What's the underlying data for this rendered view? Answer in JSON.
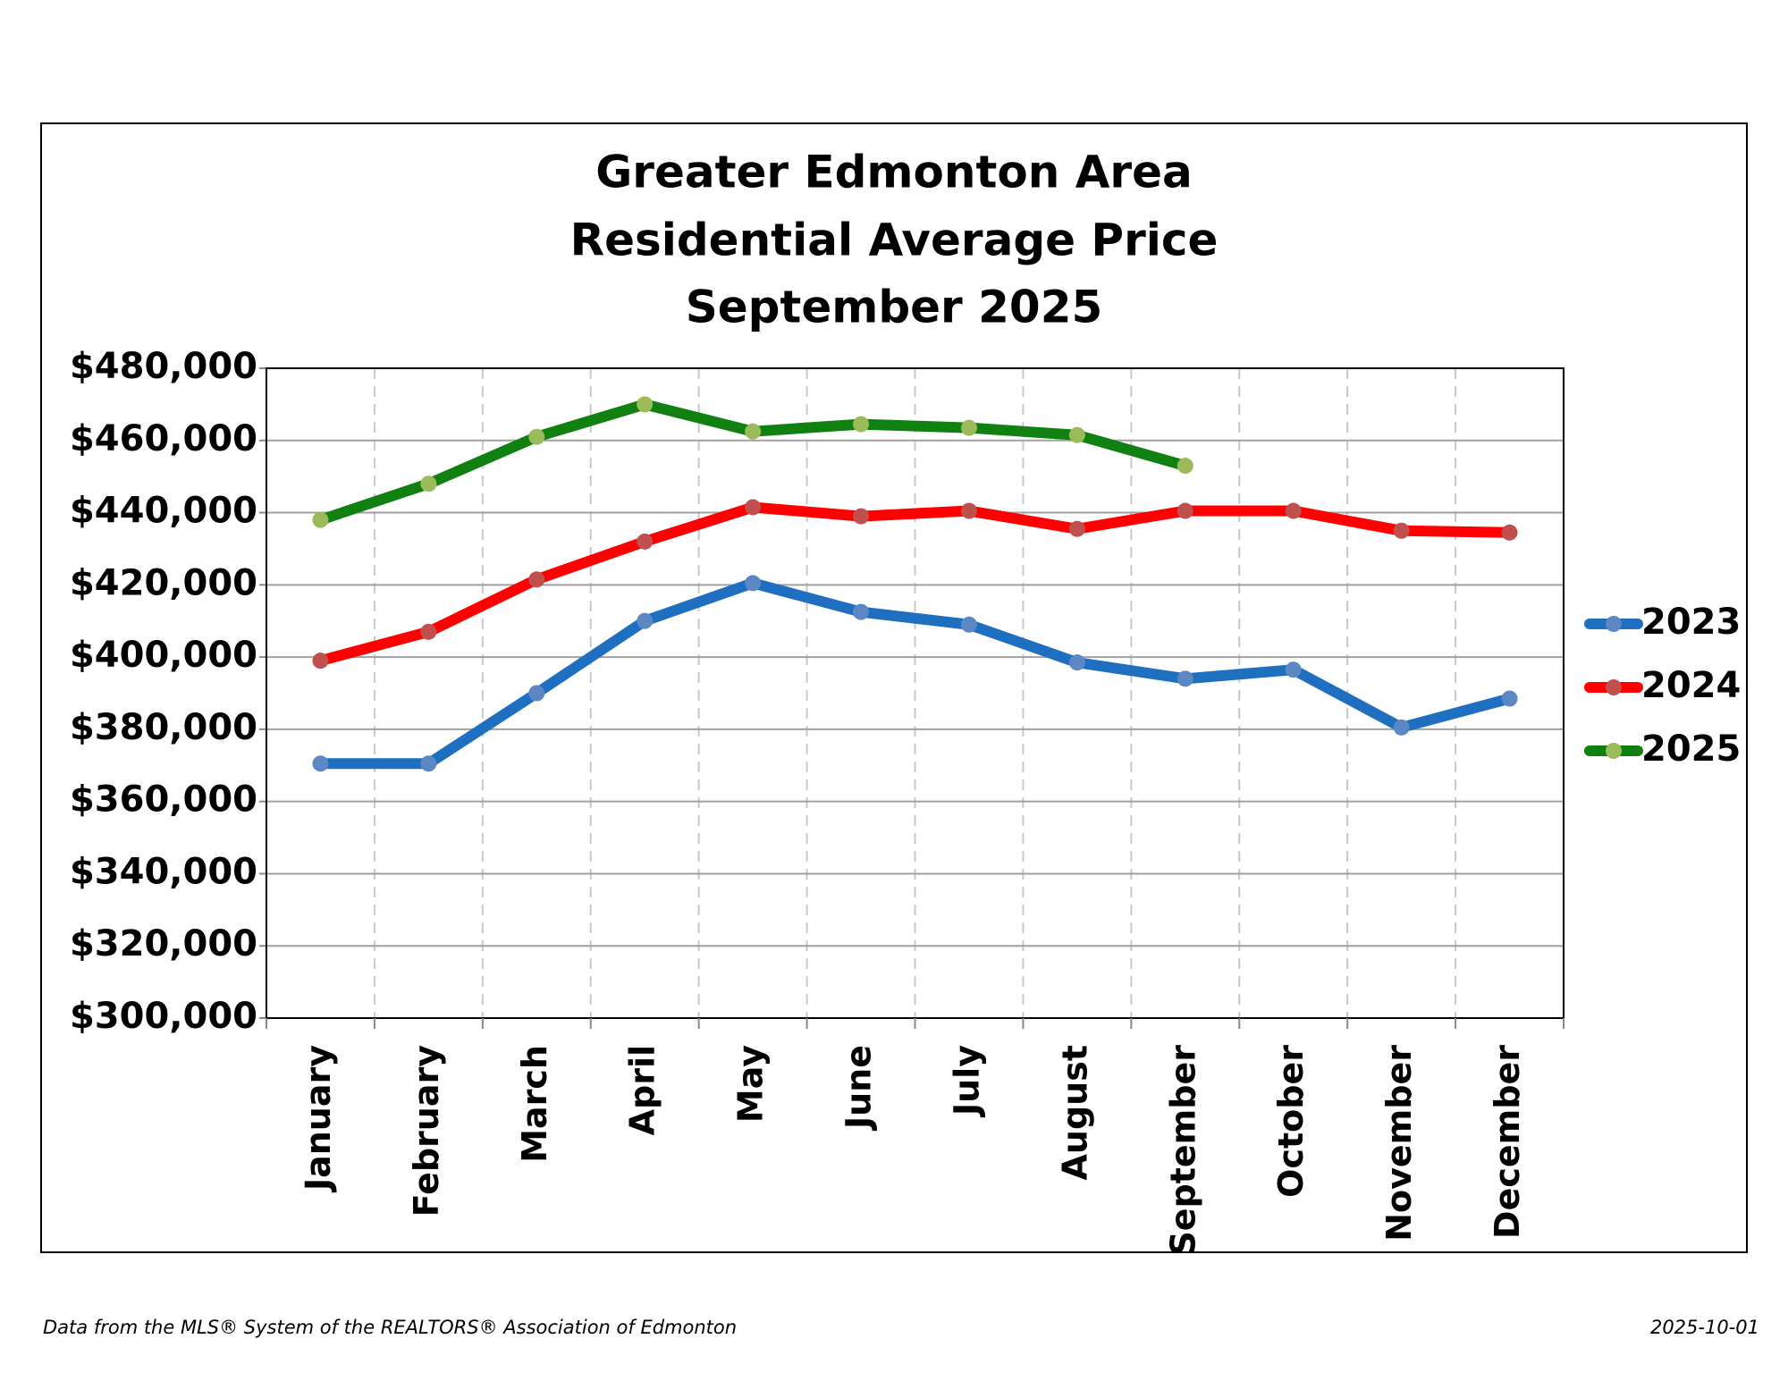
{
  "chart_data": {
    "type": "line",
    "title": [
      "Greater Edmonton Area",
      "Residential Average Price",
      "September 2025"
    ],
    "categories": [
      "January",
      "February",
      "March",
      "April",
      "May",
      "June",
      "July",
      "August",
      "September",
      "October",
      "November",
      "December"
    ],
    "series": [
      {
        "name": "2023",
        "color": "#1f6fc0",
        "marker_color": "#5b87c5",
        "values": [
          370500,
          370500,
          390000,
          410000,
          420500,
          412500,
          409000,
          398500,
          394000,
          396500,
          380500,
          388500
        ]
      },
      {
        "name": "2024",
        "color": "#ff0000",
        "marker_color": "#c0504d",
        "values": [
          399000,
          407000,
          421500,
          432000,
          441500,
          439000,
          440500,
          435500,
          440500,
          440500,
          435000,
          434500
        ]
      },
      {
        "name": "2025",
        "color": "#108010",
        "marker_color": "#9bbb59",
        "values": [
          438000,
          448000,
          461000,
          470000,
          462500,
          464500,
          463500,
          461500,
          453000,
          null,
          null,
          null
        ]
      }
    ],
    "ylim": [
      300000,
      480000
    ],
    "yticks": [
      {
        "value": 300000,
        "label": "$300,000"
      },
      {
        "value": 320000,
        "label": "$320,000"
      },
      {
        "value": 340000,
        "label": "$340,000"
      },
      {
        "value": 360000,
        "label": "$360,000"
      },
      {
        "value": 380000,
        "label": "$380,000"
      },
      {
        "value": 400000,
        "label": "$400,000"
      },
      {
        "value": 420000,
        "label": "$420,000"
      },
      {
        "value": 440000,
        "label": "$440,000"
      },
      {
        "value": 460000,
        "label": "$460,000"
      },
      {
        "value": 480000,
        "label": "$480,000"
      }
    ],
    "grid": true,
    "legend": "right",
    "source": "Data from the MLS® System of the REALTORS® Association of Edmonton",
    "date": "2025-10-01"
  }
}
